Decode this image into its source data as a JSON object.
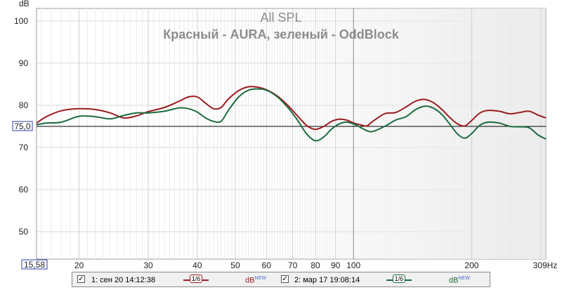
{
  "chart_data": {
    "type": "line",
    "title": "All SPL",
    "subtitle": "Красный - AURA, зеленый - OddBlock",
    "ylabel": "dB",
    "xunit": "Hz",
    "x_scale": "log",
    "xlim": [
      15.58,
      309
    ],
    "ylim": [
      43.5,
      103
    ],
    "yticks": [
      50,
      60,
      70,
      80,
      90,
      100
    ],
    "xticks": [
      20,
      30,
      40,
      50,
      60,
      70,
      80,
      90,
      100,
      200
    ],
    "x_min_label": "15,58",
    "x_max_label": "309Hz",
    "y_ref_value": 75,
    "y_ref_label": "75,0",
    "x_cursor": 100,
    "grid": true,
    "series": [
      {
        "color": "#9b1b1e",
        "x": [
          15.58,
          16.5,
          18,
          20,
          22,
          24,
          26,
          28,
          30,
          33,
          36,
          38,
          40,
          42,
          44,
          46,
          48,
          51,
          54,
          57,
          60,
          64,
          68,
          72,
          76,
          80,
          84,
          88,
          92,
          96,
          100,
          104,
          108,
          112,
          120,
          128,
          136,
          144,
          152,
          160,
          168,
          176,
          184,
          192,
          200,
          210,
          220,
          235,
          250,
          265,
          280,
          295,
          309
        ],
        "y": [
          75.8,
          77.3,
          78.7,
          79.2,
          79.0,
          78.2,
          77.0,
          77.5,
          78.5,
          79.5,
          81.0,
          82.0,
          82.0,
          80.5,
          79.2,
          79.5,
          81.5,
          83.5,
          84.4,
          84.3,
          83.7,
          82.2,
          80.0,
          77.5,
          75.2,
          74.3,
          75.0,
          76.2,
          76.7,
          76.5,
          75.8,
          75.4,
          75.1,
          76.2,
          78.0,
          78.3,
          79.6,
          81.0,
          81.4,
          80.6,
          79.0,
          77.1,
          75.6,
          75.1,
          76.4,
          78.2,
          78.8,
          78.6,
          78.0,
          78.3,
          78.6,
          77.7,
          77.0
        ]
      },
      {
        "color": "#1a6b3f",
        "x": [
          15.58,
          16.5,
          18,
          20,
          22,
          24,
          26,
          28,
          30,
          33,
          36,
          38,
          40,
          42,
          44,
          46,
          48,
          51,
          54,
          57,
          60,
          64,
          68,
          72,
          76,
          80,
          84,
          88,
          92,
          96,
          100,
          104,
          108,
          112,
          120,
          128,
          136,
          144,
          152,
          160,
          168,
          176,
          184,
          192,
          200,
          210,
          220,
          235,
          250,
          265,
          280,
          295,
          309
        ],
        "y": [
          75.4,
          75.8,
          76.0,
          77.4,
          77.3,
          76.8,
          77.6,
          78.2,
          78.2,
          78.6,
          79.4,
          79.2,
          78.4,
          77.0,
          76.2,
          76.2,
          78.8,
          82.0,
          83.6,
          83.9,
          83.6,
          82.0,
          79.5,
          76.5,
          73.2,
          71.6,
          72.5,
          74.4,
          75.6,
          76.0,
          75.6,
          74.8,
          74.0,
          73.8,
          75.0,
          76.5,
          77.3,
          79.0,
          79.8,
          79.3,
          77.8,
          75.5,
          73.2,
          72.2,
          73.3,
          75.3,
          76.0,
          75.8,
          75.0,
          74.9,
          74.7,
          73.0,
          72.0
        ]
      }
    ]
  },
  "legend": {
    "items": [
      {
        "checked": true,
        "label": "1: сен 20 14:12:38",
        "smoothing": "1/6",
        "unit": "dB",
        "unit_badge": "NEW",
        "color": "#9b1b1e"
      },
      {
        "checked": true,
        "label": "2: мар 17 19:08:14",
        "smoothing": "1/6",
        "unit": "dB",
        "unit_badge": "NEW",
        "color": "#1a6b3f"
      }
    ],
    "check_glyph": "✓"
  }
}
